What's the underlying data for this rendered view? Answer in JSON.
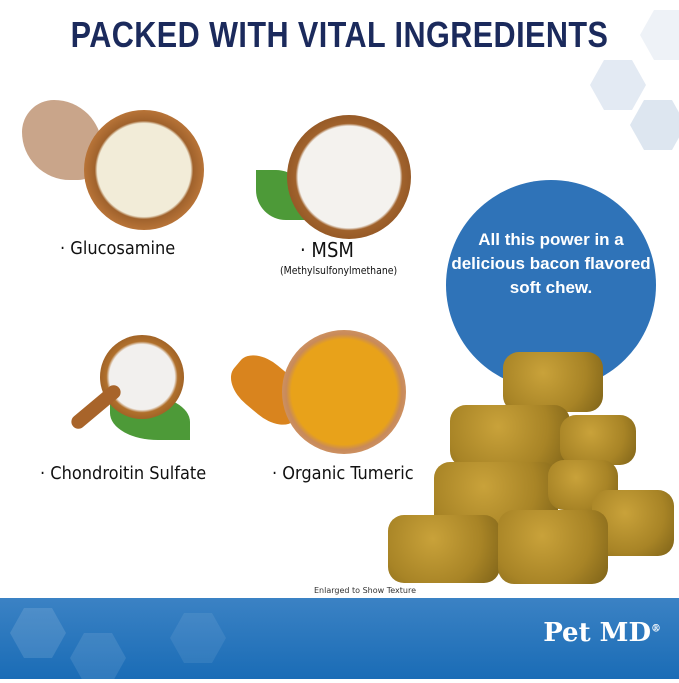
{
  "title": "PACKED WITH VITAL INGREDIENTS",
  "ingredients": [
    {
      "label": "· Glucosamine"
    },
    {
      "label": "· MSM",
      "sub": "(Methylsulfonylmethane)"
    },
    {
      "label": "· Chondroitin Sulfate"
    },
    {
      "label": "· Organic Tumeric"
    }
  ],
  "bubble": "All this power in a delicious bacon flavored soft chew.",
  "note": "Enlarged to Show Texture",
  "brand": {
    "name": "Pet MD",
    "mark": "®"
  },
  "colors": {
    "title": "#1b2a5c",
    "bubble": "#2f73b8",
    "footer": "#1a6cb6"
  }
}
